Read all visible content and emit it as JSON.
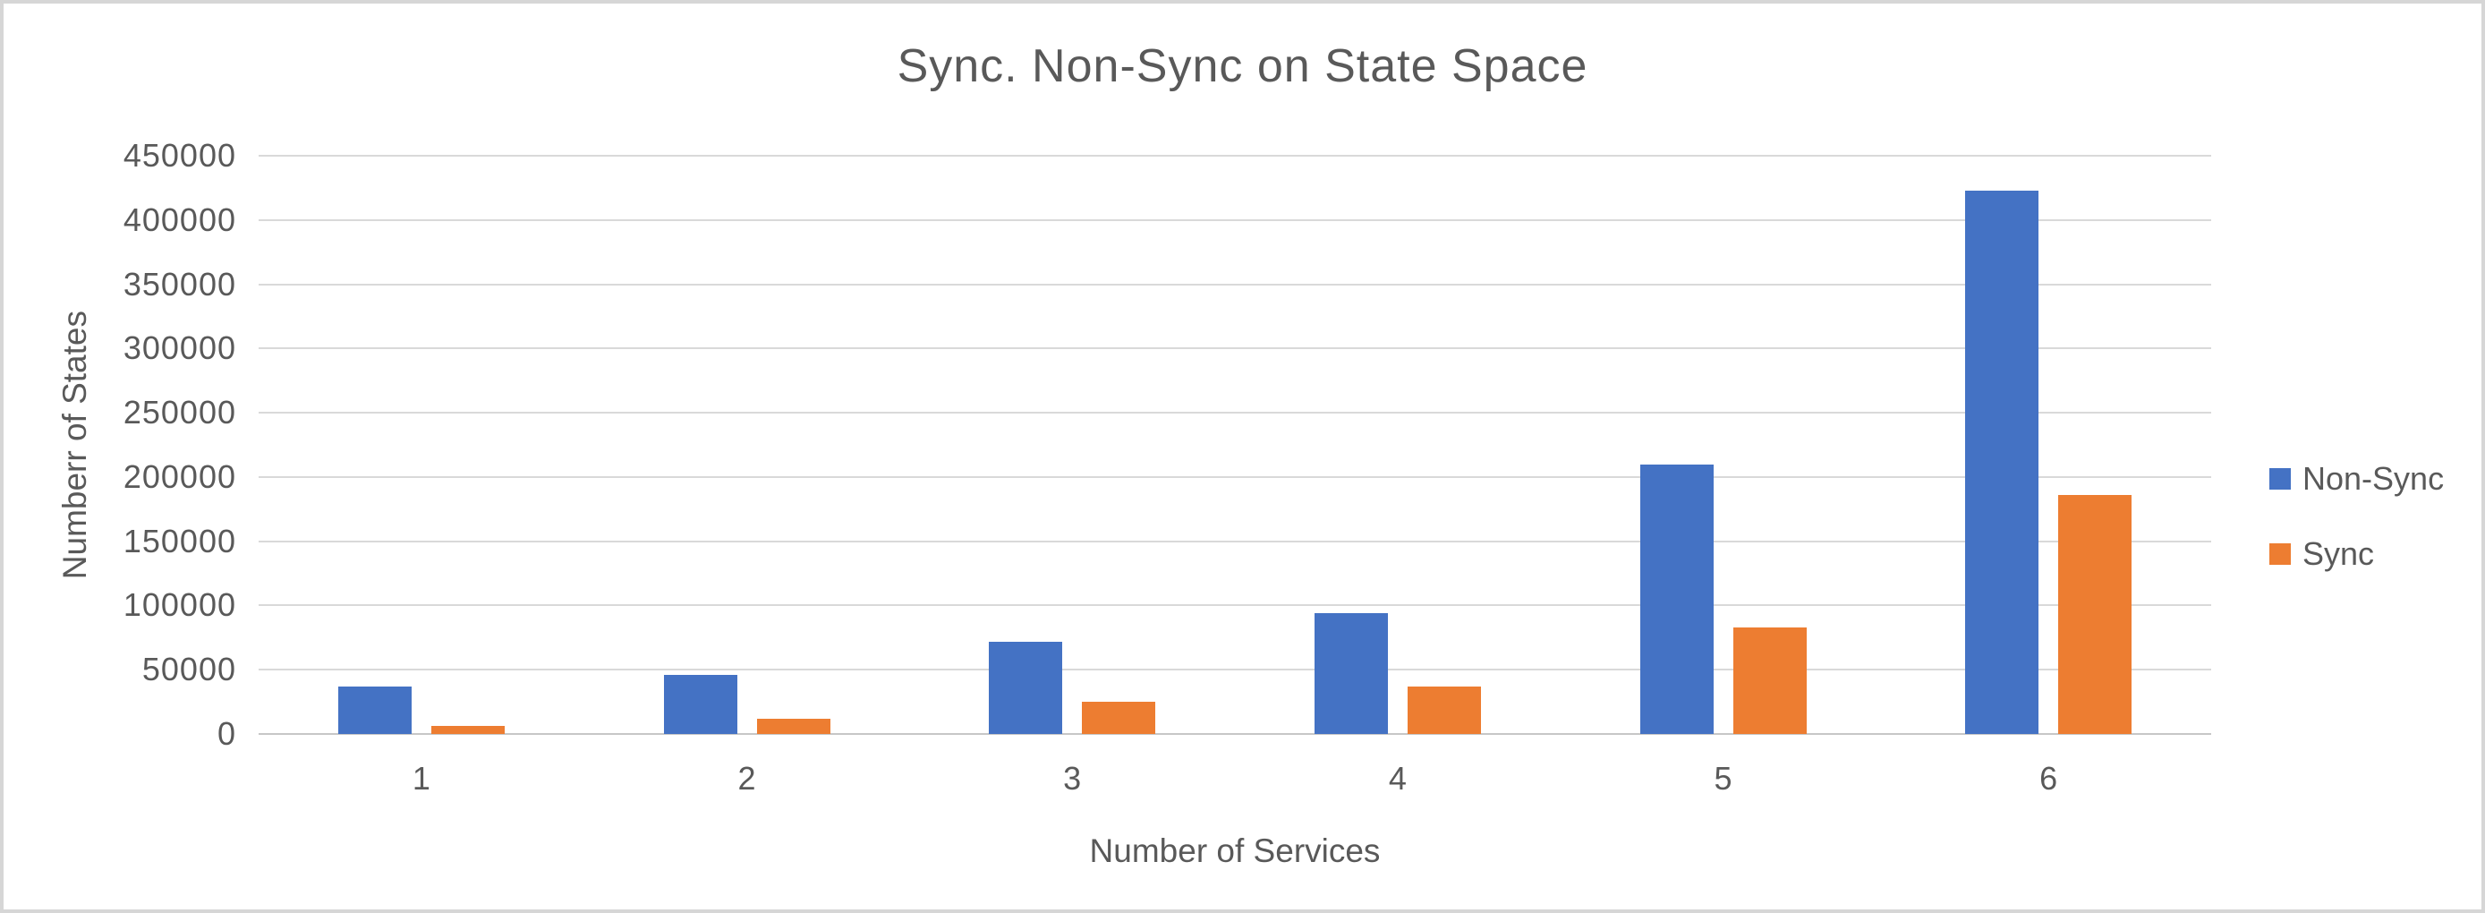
{
  "window": {
    "background": "#ffffff",
    "border_color": "#d6d6d6"
  },
  "chart_data": {
    "type": "bar",
    "title": "Sync. Non-Sync on State Space",
    "xlabel": "Number of Services",
    "ylabel": "Numberr of States",
    "categories": [
      "1",
      "2",
      "3",
      "4",
      "5",
      "6"
    ],
    "series": [
      {
        "name": "Non-Sync",
        "color": "#4472C4",
        "values": [
          37000,
          46000,
          72000,
          94000,
          210000,
          423000
        ]
      },
      {
        "name": "Sync",
        "color": "#ED7D31",
        "values": [
          6000,
          12000,
          25000,
          37000,
          83000,
          186000
        ]
      }
    ],
    "ylim": [
      0,
      450000
    ],
    "ytick_step": 50000,
    "y_ticks": [
      "0",
      "50000",
      "100000",
      "150000",
      "200000",
      "250000",
      "300000",
      "350000",
      "400000",
      "450000"
    ],
    "grid": true,
    "legend_position": "right",
    "colors": {
      "text": "#595959",
      "gridline": "#D9D9D9",
      "axis_line": "#C7C7C7"
    }
  }
}
